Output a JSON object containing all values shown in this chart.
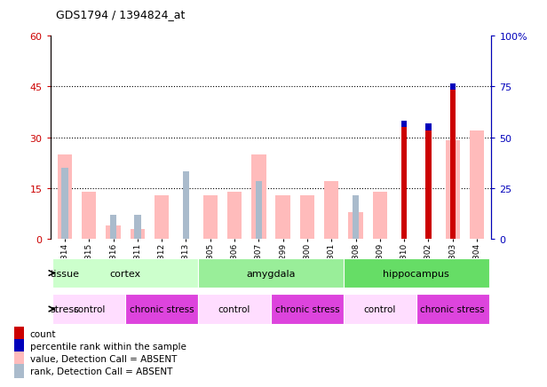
{
  "title": "GDS1794 / 1394824_at",
  "samples": [
    "GSM53314",
    "GSM53315",
    "GSM53316",
    "GSM53311",
    "GSM53312",
    "GSM53313",
    "GSM53305",
    "GSM53306",
    "GSM53307",
    "GSM53299",
    "GSM53300",
    "GSM53301",
    "GSM53308",
    "GSM53309",
    "GSM53310",
    "GSM53302",
    "GSM53303",
    "GSM53304"
  ],
  "red_bars": [
    0,
    0,
    0,
    0,
    0,
    0,
    0,
    0,
    0,
    0,
    0,
    0,
    0,
    0,
    33,
    32,
    44,
    0
  ],
  "blue_bars": [
    0,
    0,
    0,
    0,
    0,
    0,
    0,
    0,
    0,
    0,
    0,
    0,
    0,
    0,
    2,
    2,
    2,
    0
  ],
  "pink_bars": [
    25,
    14,
    4,
    3,
    13,
    0,
    13,
    14,
    25,
    13,
    13,
    17,
    8,
    14,
    0,
    0,
    29,
    32
  ],
  "lb_bars": [
    21,
    0,
    7,
    7,
    0,
    20,
    0,
    0,
    17,
    0,
    0,
    0,
    13,
    0,
    0,
    0,
    0,
    0
  ],
  "ylim_left": [
    0,
    60
  ],
  "ylim_right": [
    0,
    100
  ],
  "yticks_left": [
    0,
    15,
    30,
    45,
    60
  ],
  "yticks_right": [
    0,
    25,
    50,
    75,
    100
  ],
  "ytlabels_left": [
    "0",
    "15",
    "30",
    "45",
    "60"
  ],
  "ytlabels_right": [
    "0",
    "25",
    "50",
    "75",
    "100%"
  ],
  "left_axis_color": "#cc0000",
  "right_axis_color": "#0000bb",
  "tissues": [
    {
      "label": "cortex",
      "start": 0,
      "end": 6,
      "color": "#ccffcc"
    },
    {
      "label": "amygdala",
      "start": 6,
      "end": 12,
      "color": "#99ee99"
    },
    {
      "label": "hippocampus",
      "start": 12,
      "end": 18,
      "color": "#66dd66"
    }
  ],
  "stresses": [
    {
      "label": "control",
      "start": 0,
      "end": 3,
      "color": "#ffddff"
    },
    {
      "label": "chronic stress",
      "start": 3,
      "end": 6,
      "color": "#dd44dd"
    },
    {
      "label": "control",
      "start": 6,
      "end": 9,
      "color": "#ffddff"
    },
    {
      "label": "chronic stress",
      "start": 9,
      "end": 12,
      "color": "#dd44dd"
    },
    {
      "label": "control",
      "start": 12,
      "end": 15,
      "color": "#ffddff"
    },
    {
      "label": "chronic stress",
      "start": 15,
      "end": 18,
      "color": "#dd44dd"
    }
  ],
  "legend_labels": [
    "count",
    "percentile rank within the sample",
    "value, Detection Call = ABSENT",
    "rank, Detection Call = ABSENT"
  ],
  "legend_colors": [
    "#cc0000",
    "#0000bb",
    "#ffbbbb",
    "#aabbcc"
  ],
  "bar_width": 0.6,
  "pink_color": "#ffbbbb",
  "lb_color": "#aabbcc",
  "red_color": "#cc0000",
  "blue_color": "#0000bb"
}
